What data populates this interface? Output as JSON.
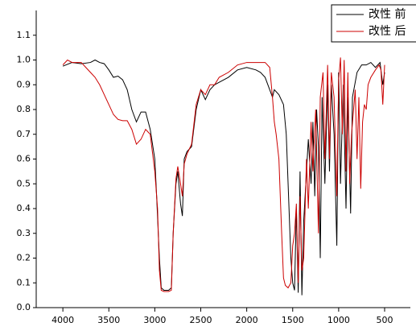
{
  "chart_data": {
    "type": "line",
    "xlim": [
      4290,
      220
    ],
    "ylim": [
      0,
      1.2
    ],
    "xticks": [
      4000,
      3500,
      3000,
      2500,
      2000,
      1500,
      1000,
      500
    ],
    "yticks": [
      {
        "value": 0,
        "label": "0.0"
      },
      0.1,
      0.2,
      0.3,
      0.4,
      0.5,
      0.6,
      0.7,
      0.8,
      0.9,
      {
        "value": 1,
        "label": "1.0"
      },
      1.1
    ],
    "legend": "upper right",
    "series": [
      {
        "name": "改性 前",
        "color": "#000000",
        "x": [
          4000,
          3900,
          3800,
          3700,
          3650,
          3600,
          3550,
          3500,
          3450,
          3400,
          3350,
          3300,
          3250,
          3200,
          3150,
          3100,
          3050,
          3000,
          2980,
          2950,
          2930,
          2900,
          2850,
          2820,
          2800,
          2770,
          2750,
          2720,
          2700,
          2680,
          2650,
          2600,
          2550,
          2500,
          2450,
          2400,
          2350,
          2300,
          2200,
          2100,
          2000,
          1900,
          1850,
          1800,
          1750,
          1720,
          1700,
          1650,
          1600,
          1570,
          1550,
          1520,
          1500,
          1480,
          1460,
          1440,
          1420,
          1400,
          1380,
          1350,
          1330,
          1300,
          1280,
          1260,
          1240,
          1220,
          1200,
          1180,
          1150,
          1120,
          1100,
          1080,
          1050,
          1020,
          1000,
          980,
          950,
          920,
          900,
          870,
          850,
          800,
          750,
          700,
          650,
          600,
          550,
          520,
          500
        ],
        "values": [
          0.975,
          0.99,
          0.985,
          0.99,
          1.0,
          0.99,
          0.985,
          0.96,
          0.93,
          0.935,
          0.92,
          0.88,
          0.8,
          0.75,
          0.79,
          0.79,
          0.72,
          0.6,
          0.45,
          0.2,
          0.08,
          0.07,
          0.07,
          0.08,
          0.3,
          0.5,
          0.55,
          0.42,
          0.37,
          0.6,
          0.63,
          0.65,
          0.8,
          0.88,
          0.84,
          0.88,
          0.9,
          0.91,
          0.93,
          0.96,
          0.97,
          0.96,
          0.95,
          0.93,
          0.88,
          0.85,
          0.88,
          0.86,
          0.82,
          0.7,
          0.5,
          0.2,
          0.1,
          0.07,
          0.4,
          0.06,
          0.55,
          0.05,
          0.35,
          0.55,
          0.68,
          0.5,
          0.75,
          0.45,
          0.8,
          0.65,
          0.2,
          0.85,
          0.5,
          0.9,
          0.55,
          0.9,
          0.7,
          0.25,
          0.95,
          0.5,
          0.9,
          0.4,
          0.85,
          0.38,
          0.85,
          0.95,
          0.98,
          0.98,
          0.99,
          0.97,
          0.99,
          0.9,
          0.95
        ]
      },
      {
        "name": "改性 后",
        "color": "#cc0000",
        "x": [
          4000,
          3950,
          3900,
          3800,
          3750,
          3700,
          3650,
          3600,
          3550,
          3500,
          3450,
          3400,
          3350,
          3300,
          3250,
          3200,
          3150,
          3100,
          3050,
          3000,
          2970,
          2950,
          2930,
          2900,
          2850,
          2820,
          2800,
          2770,
          2750,
          2720,
          2700,
          2680,
          2650,
          2600,
          2550,
          2500,
          2450,
          2400,
          2350,
          2300,
          2200,
          2100,
          2000,
          1900,
          1850,
          1800,
          1750,
          1720,
          1700,
          1680,
          1650,
          1620,
          1600,
          1580,
          1550,
          1520,
          1500,
          1480,
          1460,
          1440,
          1420,
          1400,
          1380,
          1350,
          1330,
          1300,
          1280,
          1250,
          1220,
          1200,
          1170,
          1150,
          1120,
          1100,
          1080,
          1050,
          1020,
          1000,
          980,
          960,
          940,
          920,
          900,
          880,
          860,
          820,
          800,
          780,
          760,
          740,
          720,
          700,
          680,
          650,
          600,
          560,
          540,
          520,
          500
        ],
        "values": [
          0.98,
          1.0,
          0.99,
          0.99,
          0.97,
          0.95,
          0.93,
          0.9,
          0.86,
          0.82,
          0.78,
          0.76,
          0.755,
          0.755,
          0.72,
          0.66,
          0.68,
          0.72,
          0.7,
          0.55,
          0.4,
          0.15,
          0.07,
          0.065,
          0.065,
          0.07,
          0.3,
          0.52,
          0.57,
          0.5,
          0.45,
          0.58,
          0.62,
          0.66,
          0.82,
          0.88,
          0.86,
          0.9,
          0.9,
          0.93,
          0.95,
          0.98,
          0.99,
          0.99,
          0.99,
          0.99,
          0.97,
          0.85,
          0.75,
          0.7,
          0.6,
          0.3,
          0.12,
          0.09,
          0.08,
          0.1,
          0.25,
          0.3,
          0.42,
          0.1,
          0.45,
          0.15,
          0.2,
          0.6,
          0.4,
          0.75,
          0.55,
          0.8,
          0.3,
          0.85,
          0.95,
          0.6,
          0.98,
          0.6,
          0.95,
          0.85,
          0.45,
          0.92,
          1.01,
          0.7,
          1.0,
          0.55,
          0.95,
          0.5,
          0.7,
          0.88,
          0.6,
          0.85,
          0.48,
          0.75,
          0.82,
          0.8,
          0.9,
          0.93,
          0.96,
          0.98,
          0.96,
          0.82,
          0.98
        ]
      }
    ]
  }
}
